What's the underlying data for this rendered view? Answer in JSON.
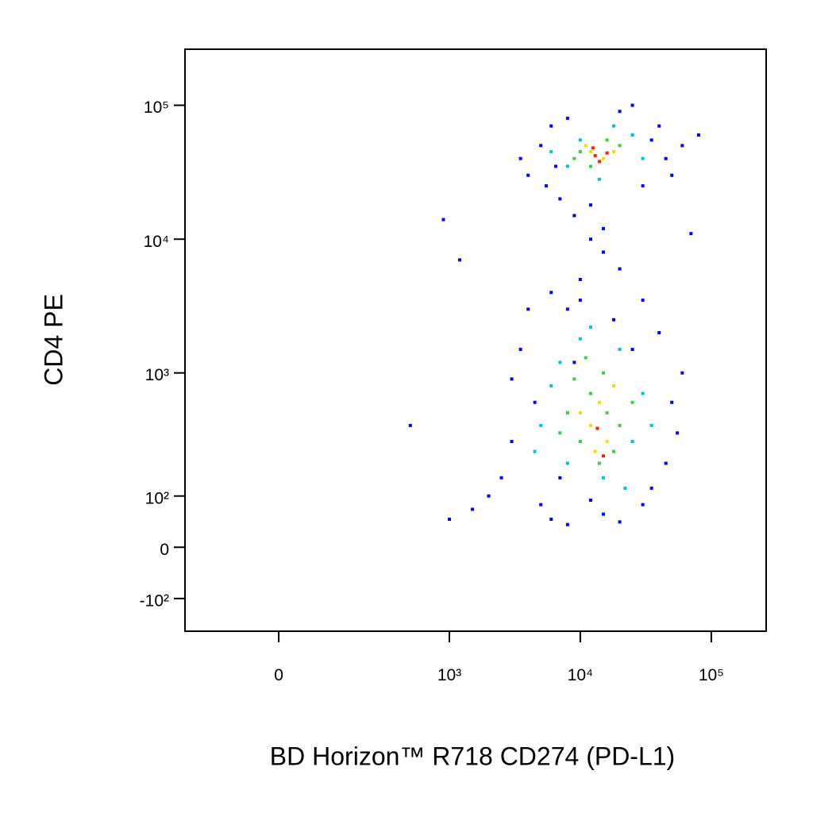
{
  "chart_data": {
    "type": "scatter",
    "x_label": "BD Horizon™ R718 CD274 (PD-L1)",
    "y_label": "CD4  PE",
    "x_scale": "biexponential",
    "y_scale": "biexponential",
    "xlim": [
      -250,
      262144
    ],
    "ylim": [
      -200,
      262144
    ],
    "xticks": [
      0,
      {
        "value": 1000,
        "label": "10³"
      },
      {
        "value": 10000,
        "label": "10⁴"
      },
      {
        "value": 100000,
        "label": "10⁵"
      }
    ],
    "yticks": [
      {
        "value": -100,
        "label": "-10²"
      },
      0,
      {
        "value": 100,
        "label": "10²"
      },
      {
        "value": 1000,
        "label": "10³"
      },
      {
        "value": 10000,
        "label": "10⁴"
      },
      {
        "value": 100000,
        "label": "10⁵"
      }
    ],
    "series": [
      {
        "color": "#0000ff",
        "x": [
          4000,
          5000,
          6000,
          8000,
          20000,
          40000,
          60000,
          50000,
          30000,
          7000,
          3500,
          80000,
          12000,
          25000,
          9000,
          45000,
          6500,
          15000,
          35000,
          5500,
          10000,
          15000,
          8000,
          20000,
          12000,
          900,
          1200,
          70000,
          3000,
          2500,
          3500,
          4000,
          5000,
          6000,
          8000,
          15000,
          30000,
          45000,
          50000,
          40000,
          30000,
          6000,
          2000,
          4500,
          60000,
          1500,
          20000,
          10000,
          35000,
          3000,
          55000,
          9000,
          25000,
          7000,
          12000,
          18000,
          500,
          1000
        ],
        "y": [
          30000,
          50000,
          70000,
          80000,
          90000,
          70000,
          50000,
          30000,
          25000,
          20000,
          40000,
          60000,
          18000,
          100000,
          15000,
          40000,
          35000,
          12000,
          55000,
          25000,
          5000,
          8000,
          3000,
          6000,
          10000,
          14000,
          7000,
          11000,
          300,
          150,
          1500,
          3000,
          80,
          50,
          40,
          60,
          80,
          200,
          600,
          2000,
          3500,
          4000,
          100,
          600,
          1000,
          70,
          45,
          3500,
          120,
          900,
          350,
          1200,
          1500,
          150,
          90,
          2500,
          400,
          50
        ]
      },
      {
        "color": "#00c0e8",
        "x": [
          8000,
          10000,
          25000,
          30000,
          6000,
          18000,
          14000,
          6000,
          20000,
          8000,
          25000,
          5000,
          30000,
          10000,
          15000,
          7000,
          35000,
          4500,
          12000,
          22000
        ],
        "y": [
          35000,
          55000,
          60000,
          40000,
          45000,
          70000,
          28000,
          800,
          1500,
          200,
          300,
          400,
          700,
          1800,
          150,
          1200,
          400,
          250,
          2200,
          120
        ]
      },
      {
        "color": "#3cd040",
        "x": [
          10000,
          20000,
          12000,
          16000,
          9000,
          8000,
          10000,
          12000,
          15000,
          20000,
          7000,
          18000,
          9000,
          14000,
          25000,
          11000,
          16000
        ],
        "y": [
          45000,
          50000,
          35000,
          55000,
          40000,
          500,
          300,
          700,
          1000,
          400,
          350,
          250,
          900,
          200,
          600,
          1300,
          500
        ]
      },
      {
        "color": "#e8e000",
        "x": [
          12000,
          15000,
          11000,
          18000,
          12000,
          16000,
          14000,
          10000,
          18000,
          13000
        ],
        "y": [
          45000,
          40000,
          50000,
          45000,
          400,
          300,
          600,
          500,
          800,
          250
        ]
      },
      {
        "color": "#ff2000",
        "x": [
          13000,
          14000,
          12500,
          16000,
          15000,
          13500
        ],
        "y": [
          42000,
          38000,
          48000,
          44000,
          230,
          380
        ]
      }
    ]
  }
}
